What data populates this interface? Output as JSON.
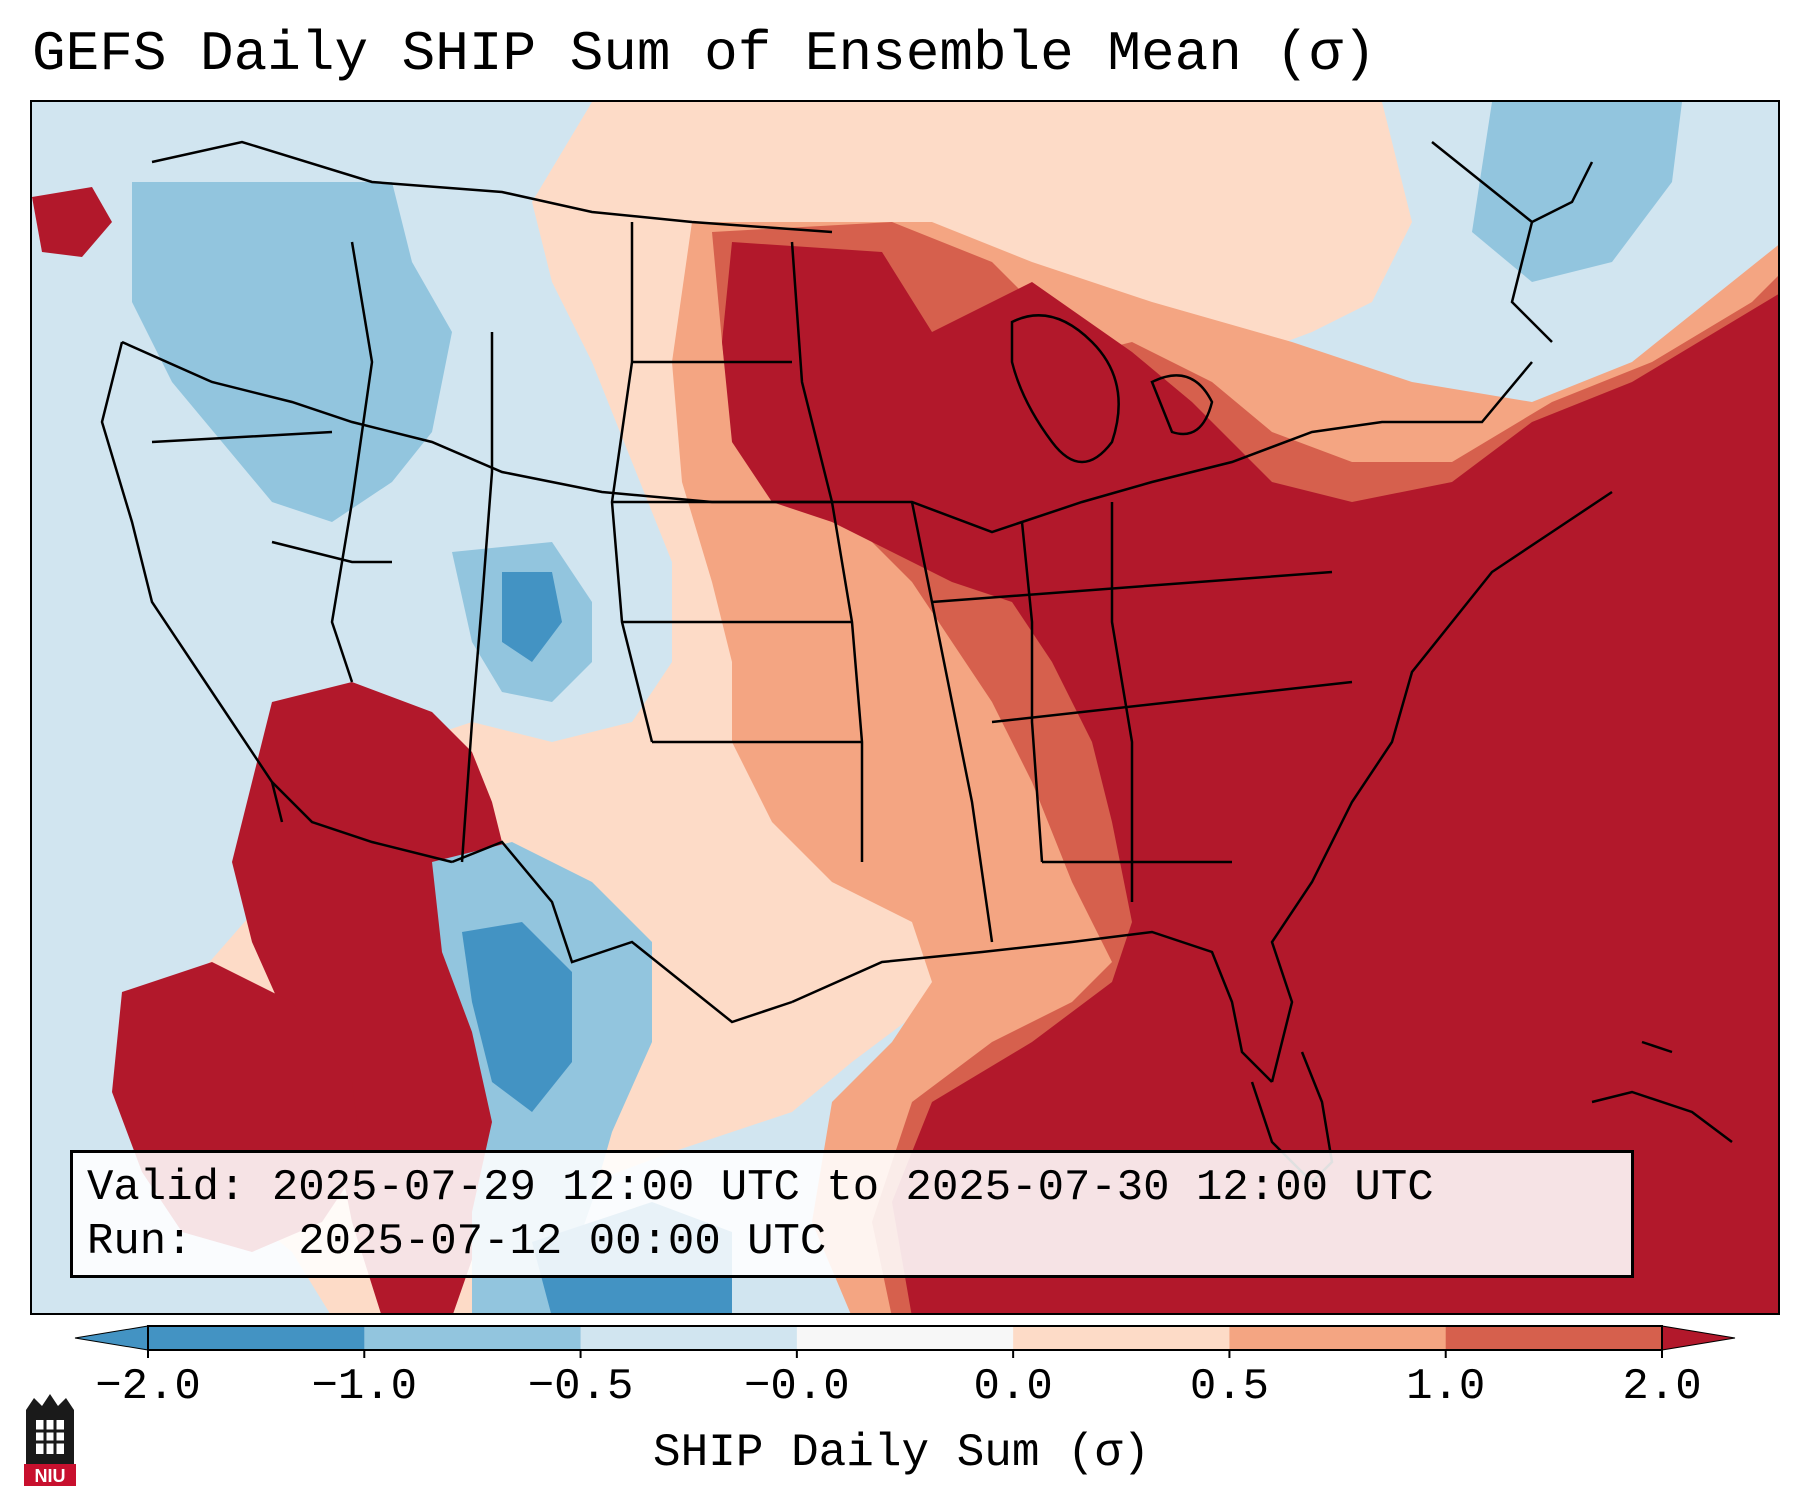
{
  "title": "GEFS Daily SHIP Sum of Ensemble Mean (σ)",
  "info": {
    "valid_label": "Valid:",
    "valid_text": "2025-07-29 12:00 UTC to 2025-07-30 12:00 UTC",
    "run_label": "Run:",
    "run_text": "2025-07-12 00:00 UTC"
  },
  "colorbar": {
    "label": "SHIP Daily Sum (σ)",
    "ticks": [
      "−2.0",
      "−1.0",
      "−0.5",
      "−0.0",
      "0.0",
      "0.5",
      "1.0",
      "2.0"
    ],
    "bin_colors": [
      "#4393c3",
      "#92c5de",
      "#d1e5f0",
      "#f7f7f7",
      "#fddbc7",
      "#f4a582",
      "#d6604d",
      "#b2182b"
    ],
    "extend": "both"
  },
  "legend_bins": [
    {
      "range": [
        -2.0,
        -1.0
      ],
      "color": "#4393c3"
    },
    {
      "range": [
        -1.0,
        -0.5
      ],
      "color": "#92c5de"
    },
    {
      "range": [
        -0.5,
        -0.0
      ],
      "color": "#d1e5f0"
    },
    {
      "range": [
        0.0,
        0.0
      ],
      "color": "#f7f7f7"
    },
    {
      "range": [
        0.0,
        0.5
      ],
      "color": "#fddbc7"
    },
    {
      "range": [
        0.5,
        1.0
      ],
      "color": "#f4a582"
    },
    {
      "range": [
        1.0,
        2.0
      ],
      "color": "#d6604d"
    },
    {
      "range": [
        2.0,
        null
      ],
      "color": "#b2182b"
    }
  ],
  "logo": {
    "text": "NIU",
    "name": "niu-logo"
  }
}
